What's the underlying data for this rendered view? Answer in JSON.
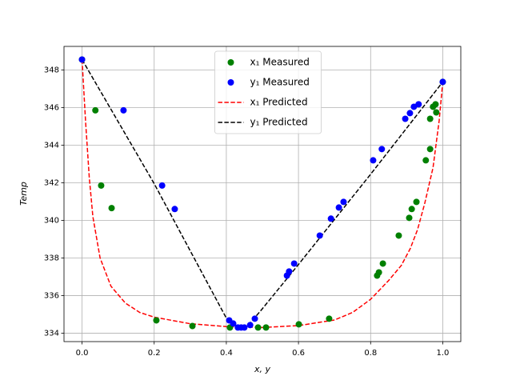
{
  "chart_data": {
    "type": "scatter",
    "xlabel": "x, y",
    "ylabel": "Temp",
    "xlim": [
      -0.05,
      1.05
    ],
    "ylim": [
      333.55,
      349.25
    ],
    "xticks": [
      {
        "value": 0,
        "label": "0.0"
      },
      0.2,
      0.4,
      0.6,
      0.8,
      {
        "value": 1,
        "label": "1.0"
      }
    ],
    "yticks": [
      334,
      336,
      338,
      340,
      342,
      344,
      346,
      348
    ],
    "grid": true,
    "legend": "upper center",
    "series": [
      {
        "name": "x₁ Measured",
        "color": "#008000",
        "style": "marker",
        "x": [
          0,
          0.037,
          0.053,
          0.082,
          0.206,
          0.306,
          0.41,
          0.488,
          0.51,
          0.601,
          0.685,
          0.818,
          0.823,
          0.834,
          0.878,
          0.907,
          0.914,
          0.927,
          0.953,
          0.965,
          0.965,
          0.973,
          0.98,
          0.982,
          1.0
        ],
        "values": [
          348.55,
          345.85,
          341.85,
          340.65,
          334.68,
          334.38,
          334.3,
          334.3,
          334.3,
          334.47,
          334.77,
          337.06,
          337.23,
          337.7,
          339.19,
          340.13,
          340.6,
          340.98,
          343.19,
          343.79,
          345.4,
          346.04,
          346.17,
          345.74,
          347.36
        ]
      },
      {
        "name": "y₁ Measured",
        "color": "#0000ff",
        "style": "marker",
        "x": [
          0,
          0.115,
          0.222,
          0.257,
          0.408,
          0.419,
          0.432,
          0.441,
          0.45,
          0.466,
          0.479,
          0.568,
          0.574,
          0.588,
          0.659,
          0.69,
          0.712,
          0.725,
          0.807,
          0.831,
          0.896,
          0.909,
          0.92,
          0.933,
          1.0
        ],
        "values": [
          348.55,
          345.85,
          341.85,
          340.6,
          334.68,
          334.51,
          334.3,
          334.3,
          334.3,
          334.43,
          334.77,
          337.06,
          337.28,
          337.7,
          339.19,
          340.09,
          340.68,
          340.98,
          343.19,
          343.79,
          345.4,
          345.7,
          346.04,
          346.17,
          347.36
        ]
      },
      {
        "name": "x₁ Predicted",
        "color": "#ff0000",
        "style": "dashed",
        "x": [
          0,
          0.01,
          0.02,
          0.03,
          0.05,
          0.08,
          0.12,
          0.16,
          0.2,
          0.3,
          0.4,
          0.5,
          0.6,
          0.7,
          0.75,
          0.8,
          0.85,
          0.885,
          0.91,
          0.93,
          0.95,
          0.973,
          0.99,
          1.0
        ],
        "values": [
          348.55,
          345.2,
          342.3,
          340.2,
          338.0,
          336.5,
          335.6,
          335.1,
          334.85,
          334.5,
          334.35,
          334.3,
          334.4,
          334.7,
          335.1,
          335.8,
          336.8,
          337.6,
          338.5,
          339.5,
          340.9,
          342.8,
          345.3,
          347.36
        ]
      },
      {
        "name": "y₁ Predicted",
        "color": "#000000",
        "style": "dashed",
        "x": [
          0,
          0.2,
          0.4,
          0.43,
          0.44,
          0.46,
          0.5,
          0.6,
          0.8,
          1.0
        ],
        "values": [
          348.55,
          341.95,
          334.8,
          334.3,
          334.25,
          334.4,
          335.3,
          337.65,
          342.45,
          347.36
        ]
      }
    ]
  }
}
